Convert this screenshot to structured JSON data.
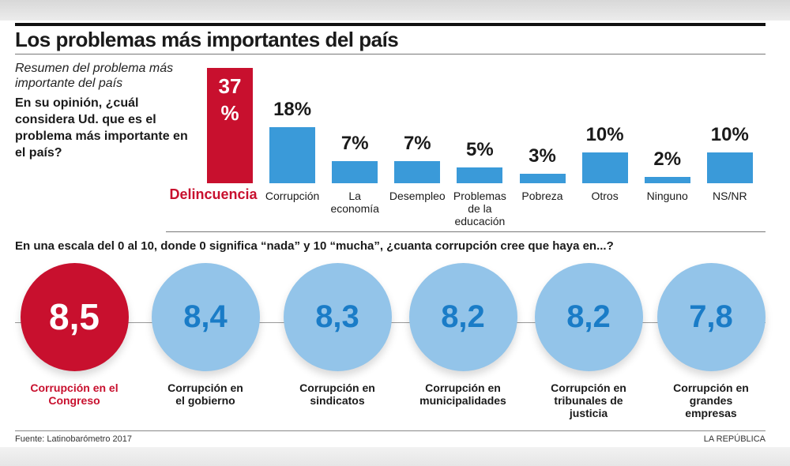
{
  "title": "Los problemas más importantes del país",
  "subtitle": "Resumen del problema más importante del país",
  "question1": "En su opinión, ¿cuál considera Ud. que es el problema más importante en el país?",
  "question2": "En una escala del 0 al 10, donde 0 significa “nada” y 10 “mucha”, ¿cuanta corrupción cree que haya en...?",
  "source": "Fuente: Latinobarómetro 2017",
  "brand": "LA REPÚBLICA",
  "colors": {
    "highlight": "#c8102e",
    "bar": "#3a9ad9",
    "circle": "#93c4e9",
    "circle_text": "#1a7cc7"
  },
  "chart_data": [
    {
      "type": "bar",
      "categories": [
        "Delincuencia",
        "Corrupción",
        "La economía",
        "Desempleo",
        "Problemas de la educación",
        "Pobreza",
        "Otros",
        "Ninguno",
        "NS/NR"
      ],
      "values": [
        37,
        18,
        7,
        7,
        5,
        3,
        10,
        2,
        10
      ],
      "labels": [
        "37 %",
        "18%",
        "7%",
        "7%",
        "5%",
        "3%",
        "10%",
        "2%",
        "10%"
      ],
      "highlight_index": 0,
      "unit": "%"
    },
    {
      "type": "bubble",
      "categories": [
        "Corrupción en el Congreso",
        "Corrupción en el gobierno",
        "Corrupción en sindicatos",
        "Corrupción en municipalidades",
        "Corrupción en tribunales de justicia",
        "Corrupción en grandes empresas"
      ],
      "values": [
        8.5,
        8.4,
        8.3,
        8.2,
        8.2,
        7.8
      ],
      "labels": [
        "8,5",
        "8,4",
        "8,3",
        "8,2",
        "8,2",
        "7,8"
      ],
      "scale": [
        0,
        10
      ],
      "highlight_index": 0
    }
  ]
}
